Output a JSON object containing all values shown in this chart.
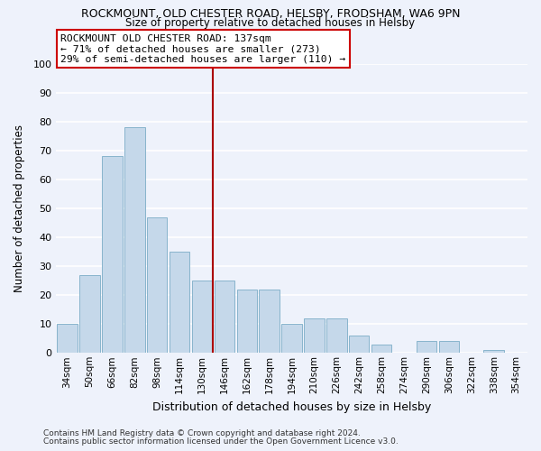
{
  "title_line1": "ROCKMOUNT, OLD CHESTER ROAD, HELSBY, FRODSHAM, WA6 9PN",
  "title_line2": "Size of property relative to detached houses in Helsby",
  "xlabel": "Distribution of detached houses by size in Helsby",
  "ylabel": "Number of detached properties",
  "categories": [
    "34sqm",
    "50sqm",
    "66sqm",
    "82sqm",
    "98sqm",
    "114sqm",
    "130sqm",
    "146sqm",
    "162sqm",
    "178sqm",
    "194sqm",
    "210sqm",
    "226sqm",
    "242sqm",
    "258sqm",
    "274sqm",
    "290sqm",
    "306sqm",
    "322sqm",
    "338sqm",
    "354sqm"
  ],
  "values": [
    10,
    27,
    68,
    78,
    47,
    35,
    25,
    25,
    22,
    22,
    10,
    12,
    12,
    6,
    3,
    0,
    4,
    4,
    0,
    1,
    0
  ],
  "bar_color": "#c5d8ea",
  "bar_edge_color": "#88b4cc",
  "reference_line_color": "#aa0000",
  "ylim": [
    0,
    100
  ],
  "yticks": [
    0,
    10,
    20,
    30,
    40,
    50,
    60,
    70,
    80,
    90,
    100
  ],
  "annotation_title": "ROCKMOUNT OLD CHESTER ROAD: 137sqm",
  "annotation_line1": "← 71% of detached houses are smaller (273)",
  "annotation_line2": "29% of semi-detached houses are larger (110) →",
  "annotation_box_color": "#ffffff",
  "annotation_box_edge": "#cc0000",
  "footer_line1": "Contains HM Land Registry data © Crown copyright and database right 2024.",
  "footer_line2": "Contains public sector information licensed under the Open Government Licence v3.0.",
  "bg_color": "#eef2fb",
  "grid_color": "#ffffff",
  "ref_line_index": 6
}
